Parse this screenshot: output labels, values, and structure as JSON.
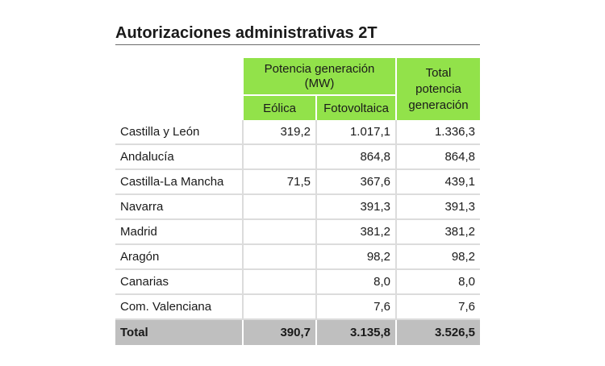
{
  "title": "Autorizaciones administrativas 2T",
  "header": {
    "group_label": "Potencia generación (MW)",
    "col_eolica": "Eólica",
    "col_fotovoltaica": "Fotovoltaica",
    "col_total": "Total potencia generación"
  },
  "rows": [
    {
      "region": "Castilla y León",
      "eolica": "319,2",
      "fotovoltaica": "1.017,1",
      "total": "1.336,3"
    },
    {
      "region": "Andalucía",
      "eolica": "",
      "fotovoltaica": "864,8",
      "total": "864,8"
    },
    {
      "region": "Castilla-La Mancha",
      "eolica": "71,5",
      "fotovoltaica": "367,6",
      "total": "439,1"
    },
    {
      "region": "Navarra",
      "eolica": "",
      "fotovoltaica": "391,3",
      "total": "391,3"
    },
    {
      "region": "Madrid",
      "eolica": "",
      "fotovoltaica": "381,2",
      "total": "381,2"
    },
    {
      "region": "Aragón",
      "eolica": "",
      "fotovoltaica": "98,2",
      "total": "98,2"
    },
    {
      "region": "Canarias",
      "eolica": "",
      "fotovoltaica": "8,0",
      "total": "8,0"
    },
    {
      "region": "Com. Valenciana",
      "eolica": "",
      "fotovoltaica": "7,6",
      "total": "7,6"
    }
  ],
  "totals": {
    "label": "Total",
    "eolica": "390,7",
    "fotovoltaica": "3.135,8",
    "total": "3.526,5"
  },
  "colors": {
    "header_green": "#92e24a",
    "total_row_gray": "#bfbfbf",
    "grid_line": "#dcdcdc"
  }
}
